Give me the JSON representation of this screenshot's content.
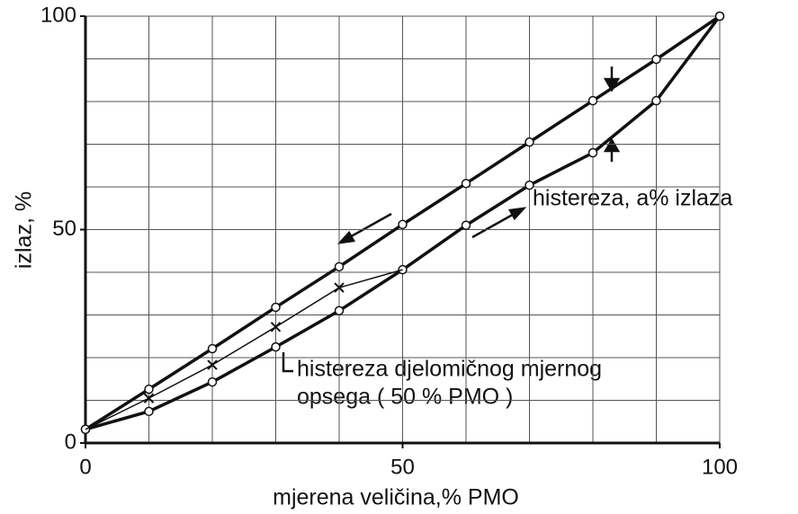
{
  "chart_data": {
    "type": "line",
    "x_label": "mjerena veličina,% PMO",
    "y_label": "izlaz, %",
    "annotations": [
      "histereza, a% izlaza",
      "histereza djelomičnog mjernog",
      "opsega ( 50 % PMO )"
    ],
    "x": [
      0,
      10,
      20,
      30,
      40,
      50,
      60,
      70,
      80,
      90,
      100
    ],
    "series": [
      {
        "color": "#111111",
        "marker": "o",
        "values": [
          3.2,
          12.6,
          22.1,
          31.8,
          41.3,
          51.2,
          60.8,
          70.5,
          80.2,
          89.9,
          100
        ]
      },
      {
        "color": "#111111",
        "marker": "o",
        "values": [
          3.2,
          7.4,
          14.3,
          22.5,
          31,
          40.6,
          51,
          60.4,
          68,
          80.2,
          100
        ]
      },
      {
        "color": "#111111",
        "marker": "x",
        "values": [
          3.2,
          10.5,
          18.3,
          27.2,
          36.4,
          40.6,
          null,
          null,
          null,
          null,
          null
        ]
      }
    ],
    "xlim": [
      0,
      100
    ],
    "ylim": [
      0,
      100
    ],
    "xticks": [
      0,
      50,
      100
    ],
    "yticks": [
      0,
      50,
      100
    ],
    "xgrid": [
      10,
      20,
      30,
      40,
      50,
      60,
      70,
      80,
      90,
      100
    ],
    "ygrid": [
      10,
      20,
      30,
      40,
      50,
      60,
      70,
      80,
      90,
      100
    ],
    "grid": true
  }
}
